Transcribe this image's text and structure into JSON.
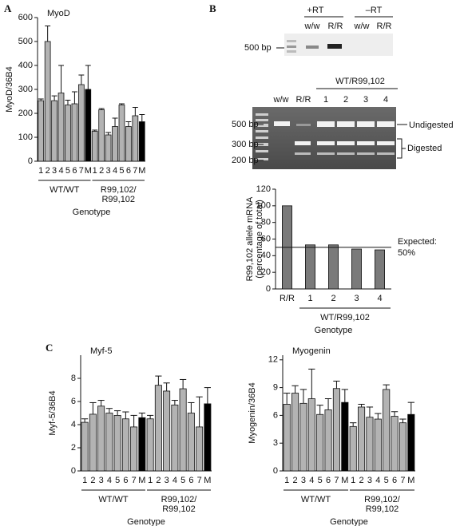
{
  "chart_data": [
    {
      "type": "bar",
      "panel": "A",
      "title": "MyoD",
      "ylabel": "MyoD/36B4",
      "xlabel": "Genotype",
      "ylim": [
        0,
        600
      ],
      "yticks": [
        0,
        100,
        200,
        300,
        400,
        500,
        600
      ],
      "groups": [
        {
          "label": [
            "WT/WT"
          ],
          "categories": [
            "1",
            "2",
            "3",
            "4",
            "5",
            "6",
            "7",
            "M"
          ],
          "values": [
            253,
            500,
            253,
            285,
            235,
            240,
            320,
            300
          ],
          "errors": [
            7,
            65,
            20,
            115,
            20,
            50,
            40,
            100
          ],
          "colors": [
            "#b3b3b3",
            "#b3b3b3",
            "#b3b3b3",
            "#b3b3b3",
            "#b3b3b3",
            "#b3b3b3",
            "#b3b3b3",
            "#000000"
          ]
        },
        {
          "label": [
            "R99,102/",
            "R99,102"
          ],
          "categories": [
            "1",
            "2",
            "3",
            "4",
            "5",
            "6",
            "7",
            "M"
          ],
          "values": [
            125,
            215,
            110,
            145,
            235,
            145,
            190,
            165
          ],
          "errors": [
            5,
            5,
            10,
            35,
            5,
            20,
            35,
            30
          ],
          "colors": [
            "#b3b3b3",
            "#b3b3b3",
            "#b3b3b3",
            "#b3b3b3",
            "#b3b3b3",
            "#b3b3b3",
            "#b3b3b3",
            "#000000"
          ]
        }
      ]
    },
    {
      "type": "bar",
      "ylabel": [
        "R99,102 allele mRNA",
        "(percentage of total)"
      ],
      "xlabel": "Genotype",
      "ylim": [
        0,
        120
      ],
      "yticks": [
        0,
        20,
        40,
        60,
        80,
        100,
        120
      ],
      "reference": {
        "value": 50,
        "label": [
          "Expected:",
          "50%"
        ]
      },
      "groups": [
        {
          "categories": [
            "R/R"
          ],
          "values": [
            100
          ],
          "colors": [
            "#7a7a7a"
          ]
        },
        {
          "label": [
            "WT/R99,102"
          ],
          "categories": [
            "1",
            "2",
            "3",
            "4"
          ],
          "values": [
            53,
            53,
            48,
            47
          ],
          "colors": [
            "#7a7a7a",
            "#7a7a7a",
            "#7a7a7a",
            "#7a7a7a"
          ]
        }
      ]
    },
    {
      "type": "bar",
      "panel": "C",
      "title": "Myf-5",
      "ylabel": "Myf-5/36B4",
      "xlabel": "Genotype",
      "ylim": [
        0,
        10
      ],
      "yticks": [
        0,
        2,
        4,
        6,
        8
      ],
      "groups": [
        {
          "label": [
            "WT/WT"
          ],
          "categories": [
            "1",
            "2",
            "3",
            "4",
            "5",
            "6",
            "7",
            "M"
          ],
          "values": [
            4.2,
            4.9,
            5.6,
            5.0,
            4.8,
            4.5,
            3.8,
            4.6
          ],
          "errors": [
            0.3,
            1.0,
            0.5,
            0.4,
            0.4,
            0.6,
            1.0,
            0.4
          ],
          "colors": [
            "#b3b3b3",
            "#b3b3b3",
            "#b3b3b3",
            "#b3b3b3",
            "#b3b3b3",
            "#b3b3b3",
            "#b3b3b3",
            "#000000"
          ]
        },
        {
          "label": [
            "R99,102/",
            "R99,102"
          ],
          "categories": [
            "1",
            "2",
            "3",
            "4",
            "5",
            "6",
            "7",
            "M"
          ],
          "values": [
            4.5,
            7.4,
            6.9,
            5.7,
            7.1,
            5.0,
            3.8,
            5.8
          ],
          "errors": [
            0.3,
            0.8,
            0.7,
            0.4,
            0.8,
            0.9,
            2.6,
            1.4
          ],
          "colors": [
            "#b3b3b3",
            "#b3b3b3",
            "#b3b3b3",
            "#b3b3b3",
            "#b3b3b3",
            "#b3b3b3",
            "#b3b3b3",
            "#000000"
          ]
        }
      ]
    },
    {
      "type": "bar",
      "title": "Myogenin",
      "ylabel": "Myogenin/36B4",
      "xlabel": "Genotype",
      "ylim": [
        0,
        12.5
      ],
      "yticks": [
        0,
        3,
        6,
        9,
        12
      ],
      "groups": [
        {
          "label": [
            "WT/WT"
          ],
          "categories": [
            "1",
            "2",
            "3",
            "4",
            "5",
            "6",
            "7",
            "M"
          ],
          "values": [
            7.2,
            8.4,
            7.3,
            7.8,
            6.1,
            6.6,
            8.9,
            7.4
          ],
          "errors": [
            1.2,
            0.8,
            1.5,
            3.2,
            1.0,
            1.2,
            0.8,
            1.4
          ],
          "colors": [
            "#b3b3b3",
            "#b3b3b3",
            "#b3b3b3",
            "#b3b3b3",
            "#b3b3b3",
            "#b3b3b3",
            "#b3b3b3",
            "#000000"
          ]
        },
        {
          "label": [
            "R99,102/",
            "R99,102"
          ],
          "categories": [
            "1",
            "2",
            "3",
            "4",
            "5",
            "6",
            "7",
            "M"
          ],
          "values": [
            4.8,
            6.9,
            5.8,
            5.6,
            8.8,
            5.9,
            5.2,
            6.1
          ],
          "errors": [
            0.4,
            0.3,
            1.1,
            0.6,
            0.5,
            0.5,
            0.4,
            1.3
          ],
          "colors": [
            "#b3b3b3",
            "#b3b3b3",
            "#b3b3b3",
            "#b3b3b3",
            "#b3b3b3",
            "#b3b3b3",
            "#b3b3b3",
            "#000000"
          ]
        }
      ]
    }
  ],
  "gel": {
    "panel": "B",
    "rt_panel": {
      "headers": [
        "+RT",
        "–RT"
      ],
      "lanes": [
        "w/w",
        "R/R",
        "w/w",
        "R/R"
      ],
      "marker": "500 bp"
    },
    "digest_panel": {
      "lanes": [
        "w/w",
        "R/R",
        "1",
        "2",
        "3",
        "4"
      ],
      "group": "WT/R99,102",
      "markers": [
        "500 bp",
        "300 bp",
        "200 bp"
      ],
      "bands": [
        "Undigested",
        "Digested"
      ]
    }
  }
}
